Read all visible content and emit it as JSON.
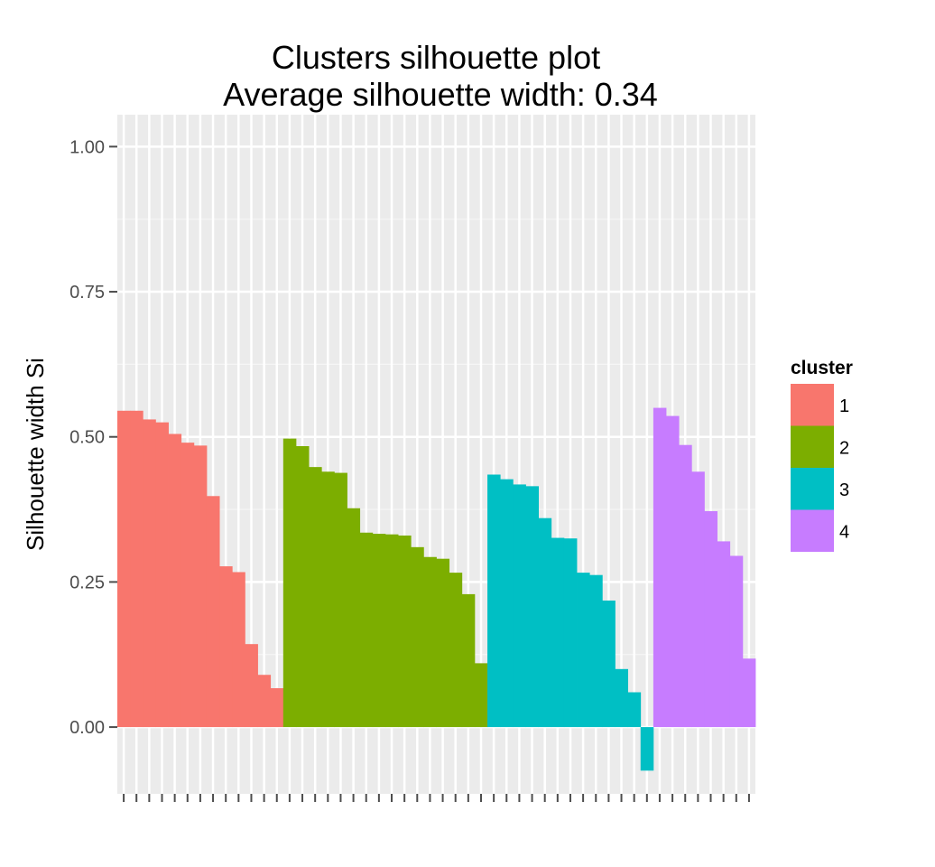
{
  "chart_data": {
    "type": "bar",
    "title": "Clusters silhouette plot",
    "subtitle": "Average silhouette width: 0.34",
    "xlabel": "",
    "ylabel": "Silhouette width Si",
    "ylim": [
      -0.115,
      1.055
    ],
    "y_ticks": [
      0,
      0.25,
      0.5,
      0.75,
      1
    ],
    "y_tick_labels": [
      "0.00",
      "0.25",
      "0.50",
      "0.75",
      "1.00"
    ],
    "grid": true,
    "legend": {
      "title": "cluster",
      "position": "right"
    },
    "series": [
      {
        "name": "1",
        "color": "#F8766D",
        "values": [
          0.545,
          0.545,
          0.53,
          0.525,
          0.505,
          0.49,
          0.485,
          0.398,
          0.277,
          0.267,
          0.143,
          0.09,
          0.067
        ]
      },
      {
        "name": "2",
        "color": "#7CAE00",
        "values": [
          0.497,
          0.484,
          0.448,
          0.44,
          0.438,
          0.377,
          0.335,
          0.333,
          0.332,
          0.33,
          0.31,
          0.293,
          0.29,
          0.266,
          0.229,
          0.11
        ]
      },
      {
        "name": "3",
        "color": "#00BFC4",
        "values": [
          0.435,
          0.427,
          0.418,
          0.415,
          0.36,
          0.326,
          0.325,
          0.266,
          0.262,
          0.218,
          0.1,
          0.06,
          -0.075
        ]
      },
      {
        "name": "4",
        "color": "#C77CFF",
        "values": [
          0.55,
          0.536,
          0.486,
          0.44,
          0.372,
          0.32,
          0.295,
          0.118
        ]
      }
    ]
  }
}
